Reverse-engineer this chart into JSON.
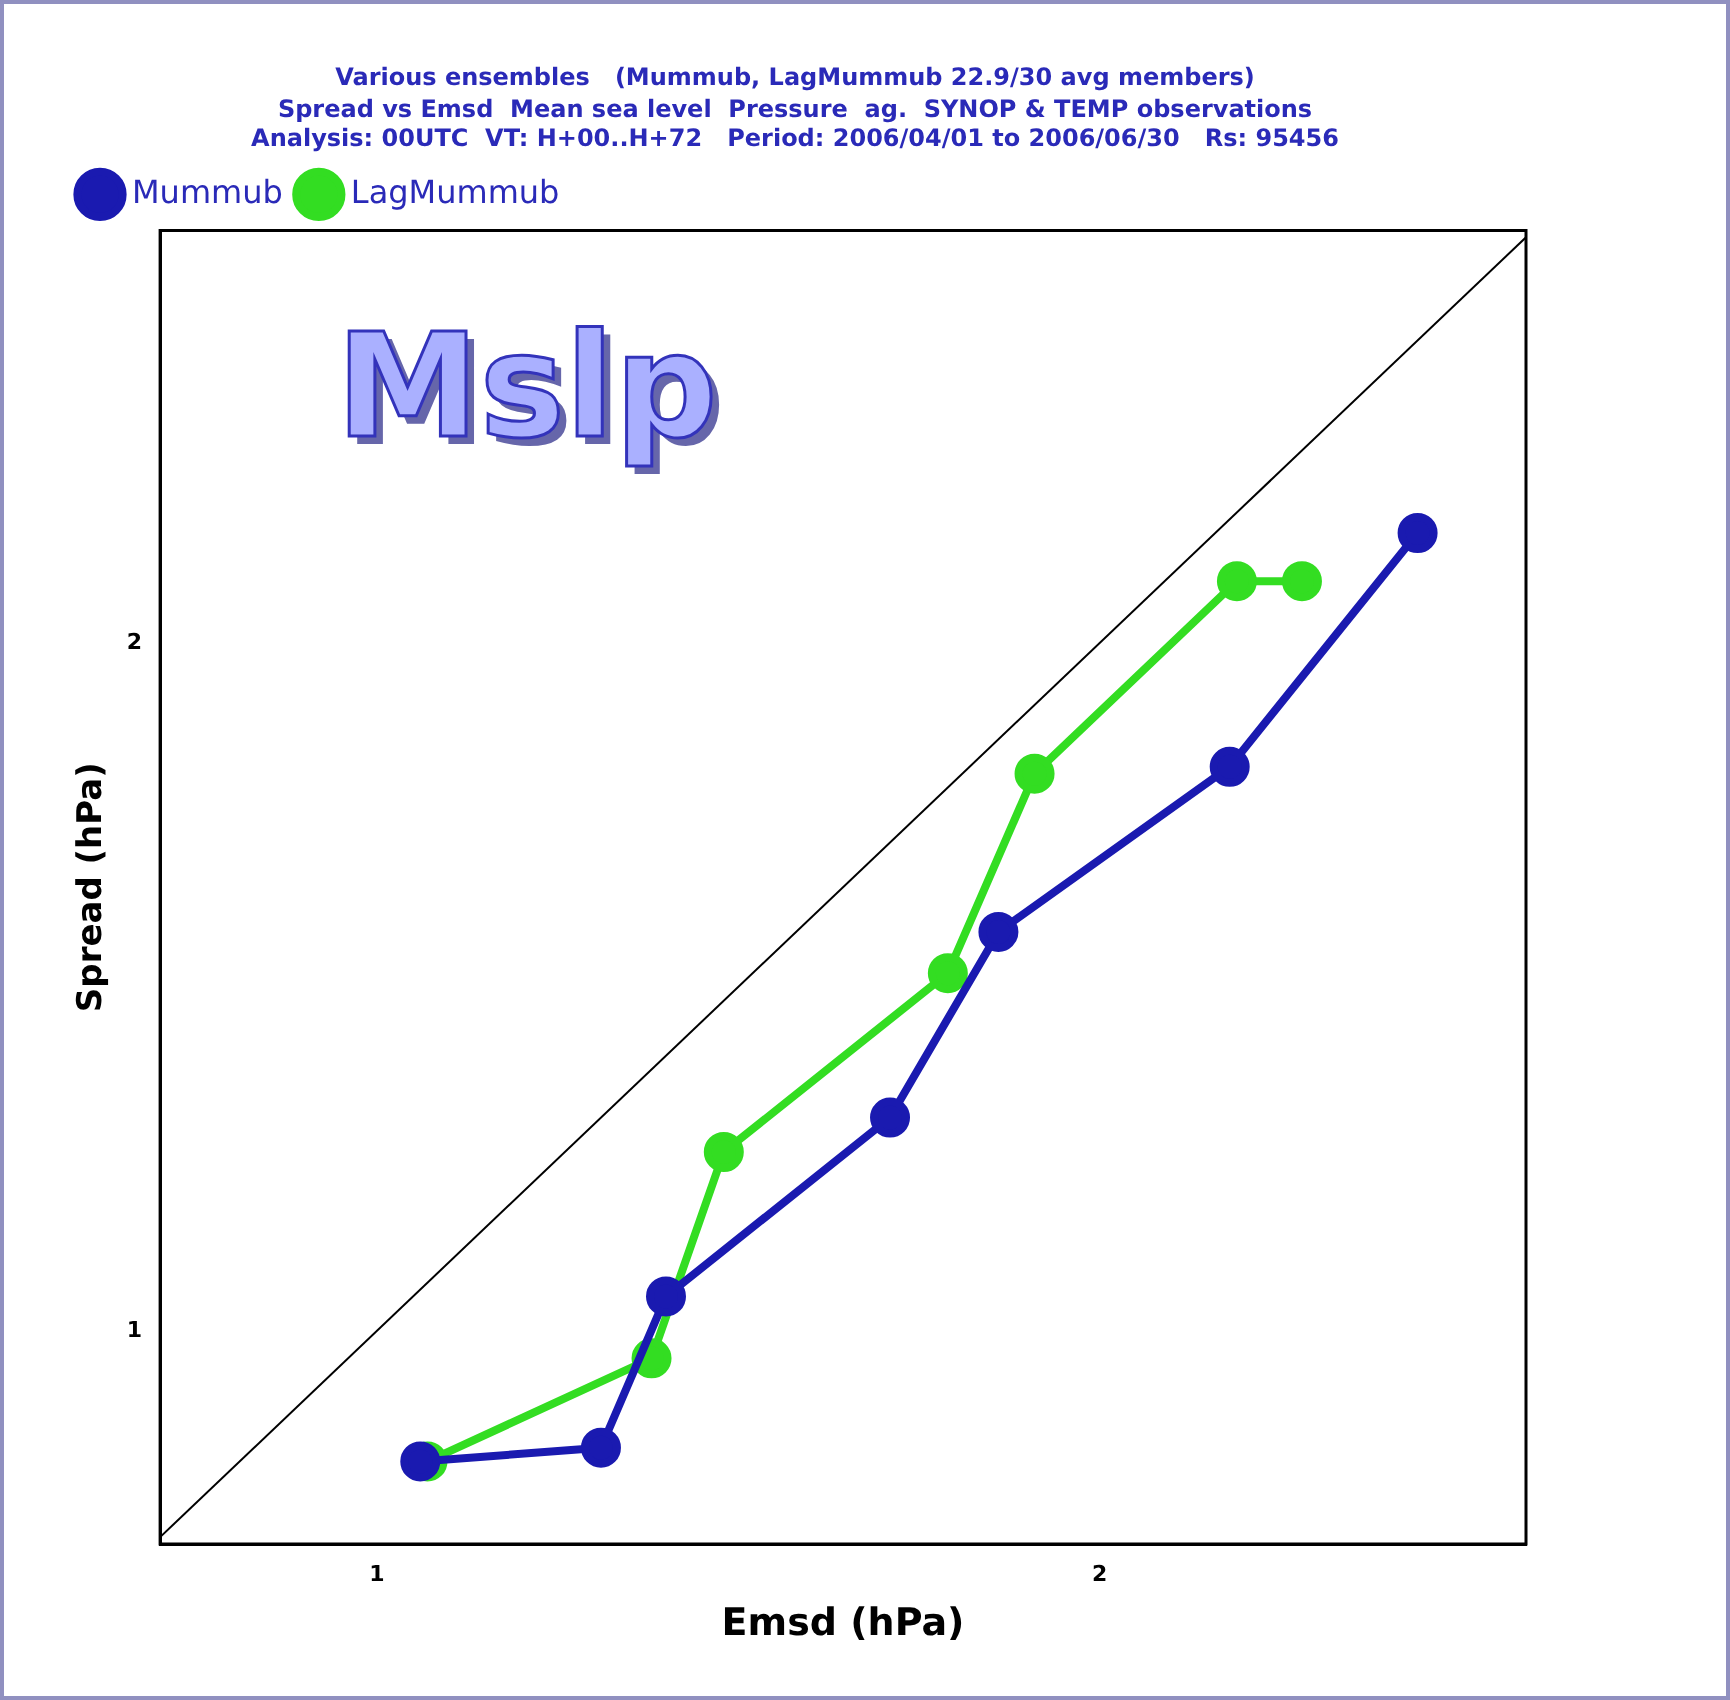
{
  "chart_data": {
    "type": "line",
    "title": "Various ensembles   (Mummub, LagMummub 22.9/30 avg members)",
    "subtitle": "Spread vs Emsd  Mean sea level  Pressure  ag.  SYNOP & TEMP observations",
    "annotations": [
      "Analysis: 00UTC  VT: H+00..H+72   Period: 2006/04/01 to 2006/06/30   Rs: 95456",
      "Mslp"
    ],
    "xlabel": "Emsd (hPa)",
    "ylabel": "Spread (hPa)",
    "xlim": [
      0.7,
      2.59
    ],
    "ylim": [
      0.69,
      2.6
    ],
    "xticks": [
      1,
      2
    ],
    "yticks": [
      1,
      2
    ],
    "grid": false,
    "legend": "top left",
    "marker": "circle",
    "line_style": "solid",
    "series": [
      {
        "name": "Mummub",
        "color": "#1a1ab0",
        "x": [
          1.06,
          1.31,
          1.4,
          1.71,
          1.86,
          2.18,
          2.44
        ],
        "values": [
          0.81,
          0.83,
          1.05,
          1.31,
          1.58,
          1.82,
          2.16
        ]
      },
      {
        "name": "LagMummub",
        "color": "#33dd22",
        "x": [
          1.07,
          1.38,
          1.48,
          1.79,
          1.91,
          2.19,
          2.28
        ],
        "values": [
          0.81,
          0.96,
          1.26,
          1.52,
          1.81,
          2.09,
          2.09
        ]
      },
      {
        "color": "#000000",
        "marker": "none",
        "x": [
          0.7,
          2.59
        ],
        "values": [
          0.7,
          2.59
        ]
      }
    ]
  }
}
